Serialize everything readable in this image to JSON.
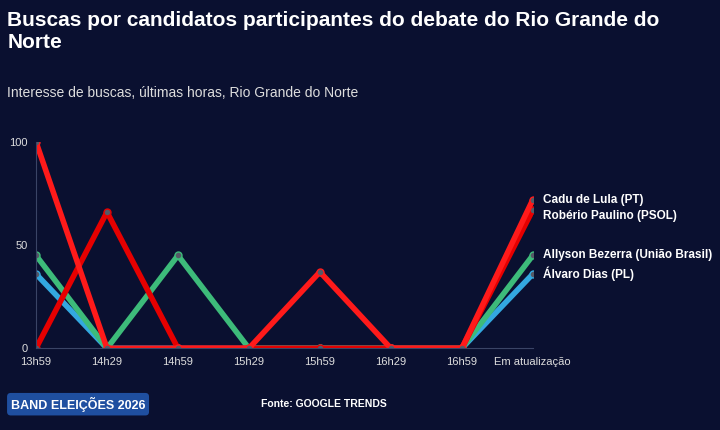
{
  "chart_data": {
    "type": "line",
    "title": "Buscas por candidatos participantes do debate do Rio Grande do Norte",
    "subtitle": "Interesse de buscas, últimas horas, Rio Grande do Norte",
    "annotations": [
      "Fonte: GOOGLE TRENDS",
      "BAND ELEIÇÕES 2026"
    ],
    "categories": [
      "13h59",
      "14h29",
      "14h59",
      "15h29",
      "15h59",
      "16h29",
      "16h59",
      "Em atualização"
    ],
    "series": [
      {
        "name": "Álvaro Dias (PL)",
        "color": "#33a8e0",
        "values": [
          36,
          0,
          0,
          0,
          0,
          0,
          0,
          36
        ]
      },
      {
        "name": "Allyson Bezerra (União Brasil)",
        "color": "#3dbb7a",
        "values": [
          45,
          0,
          45,
          0,
          0,
          0,
          0,
          45
        ]
      },
      {
        "name": "Robério Paulino (PSOL)",
        "color": "#e60000",
        "values": [
          0,
          66,
          0,
          0,
          0,
          0,
          0,
          67
        ]
      },
      {
        "name": "Cadu de Lula (PT)",
        "color": "#ff1a1a",
        "values": [
          100,
          0,
          0,
          0,
          37,
          0,
          0,
          72
        ]
      }
    ],
    "ylim": [
      0,
      100
    ],
    "yticks": [
      0,
      50,
      100
    ],
    "grid": false,
    "marker": "o",
    "line_style": "solid"
  }
}
